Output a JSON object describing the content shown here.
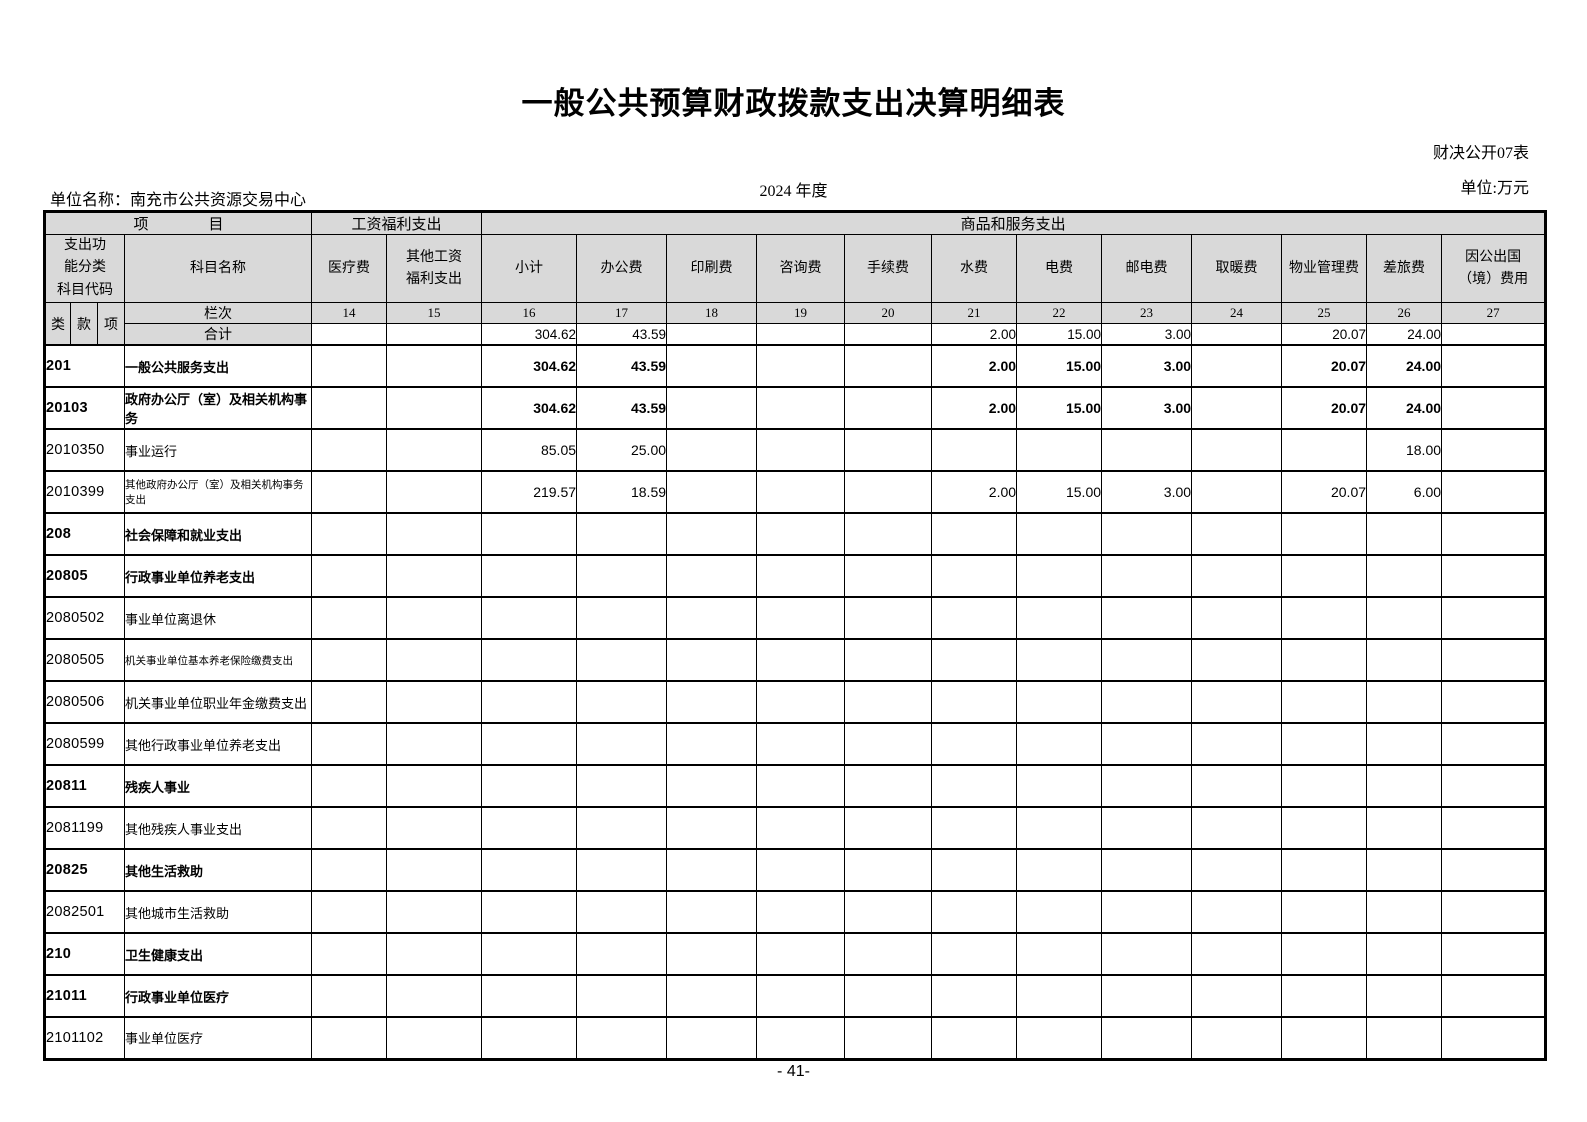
{
  "page": {
    "title": "一般公共预算财政拨款支出决算明细表",
    "form_label": "财决公开07表",
    "unit_name": "单位名称：南充市公共资源交易中心",
    "year": "2024 年度",
    "unit": "单位:万元",
    "page_number": "- 41-"
  },
  "table": {
    "group_headers": {
      "item": "项　　　　目",
      "wage_welfare": "工资福利支出",
      "goods_services": "商品和服务支出"
    },
    "code_header": "支出功\n能分类\n科目代码",
    "subject_header": "科目名称",
    "code_sub_headers": [
      "类",
      "款",
      "项"
    ],
    "lanci_label": "栏次",
    "total_label": "合计",
    "column_headers": [
      "医疗费",
      "其他工资\n福利支出",
      "小计",
      "办公费",
      "印刷费",
      "咨询费",
      "手续费",
      "水费",
      "电费",
      "邮电费",
      "取暖费",
      "物业管理费",
      "差旅费",
      "因公出国\n（境）费用"
    ],
    "column_numbers": [
      "14",
      "15",
      "16",
      "17",
      "18",
      "19",
      "20",
      "21",
      "22",
      "23",
      "24",
      "25",
      "26",
      "27"
    ],
    "total_values": [
      "",
      "",
      "304.62",
      "43.59",
      "",
      "",
      "",
      "2.00",
      "15.00",
      "3.00",
      "",
      "20.07",
      "24.00",
      ""
    ],
    "rows": [
      {
        "code": "201",
        "name": "一般公共服务支出",
        "style": "bold",
        "values": [
          "",
          "",
          "304.62",
          "43.59",
          "",
          "",
          "",
          "2.00",
          "15.00",
          "3.00",
          "",
          "20.07",
          "24.00",
          ""
        ]
      },
      {
        "code": "20103",
        "name": "政府办公厅（室）及相关机构事务",
        "style": "bold",
        "values": [
          "",
          "",
          "304.62",
          "43.59",
          "",
          "",
          "",
          "2.00",
          "15.00",
          "3.00",
          "",
          "20.07",
          "24.00",
          ""
        ]
      },
      {
        "code": "2010350",
        "name": "事业运行",
        "style": "normal",
        "values": [
          "",
          "",
          "85.05",
          "25.00",
          "",
          "",
          "",
          "",
          "",
          "",
          "",
          "",
          "18.00",
          ""
        ]
      },
      {
        "code": "2010399",
        "name": "其他政府办公厅（室）及相关机构事务支出",
        "style": "small",
        "values": [
          "",
          "",
          "219.57",
          "18.59",
          "",
          "",
          "",
          "2.00",
          "15.00",
          "3.00",
          "",
          "20.07",
          "6.00",
          ""
        ]
      },
      {
        "code": "208",
        "name": "社会保障和就业支出",
        "style": "bold",
        "values": [
          "",
          "",
          "",
          "",
          "",
          "",
          "",
          "",
          "",
          "",
          "",
          "",
          "",
          ""
        ]
      },
      {
        "code": "20805",
        "name": "行政事业单位养老支出",
        "style": "bold",
        "values": [
          "",
          "",
          "",
          "",
          "",
          "",
          "",
          "",
          "",
          "",
          "",
          "",
          "",
          ""
        ]
      },
      {
        "code": "2080502",
        "name": "事业单位离退休",
        "style": "normal",
        "values": [
          "",
          "",
          "",
          "",
          "",
          "",
          "",
          "",
          "",
          "",
          "",
          "",
          "",
          ""
        ]
      },
      {
        "code": "2080505",
        "name": "机关事业单位基本养老保险缴费支出",
        "style": "small",
        "values": [
          "",
          "",
          "",
          "",
          "",
          "",
          "",
          "",
          "",
          "",
          "",
          "",
          "",
          ""
        ]
      },
      {
        "code": "2080506",
        "name": "机关事业单位职业年金缴费支出",
        "style": "normal",
        "values": [
          "",
          "",
          "",
          "",
          "",
          "",
          "",
          "",
          "",
          "",
          "",
          "",
          "",
          ""
        ]
      },
      {
        "code": "2080599",
        "name": "其他行政事业单位养老支出",
        "style": "normal",
        "values": [
          "",
          "",
          "",
          "",
          "",
          "",
          "",
          "",
          "",
          "",
          "",
          "",
          "",
          ""
        ]
      },
      {
        "code": "20811",
        "name": "残疾人事业",
        "style": "bold",
        "values": [
          "",
          "",
          "",
          "",
          "",
          "",
          "",
          "",
          "",
          "",
          "",
          "",
          "",
          ""
        ]
      },
      {
        "code": "2081199",
        "name": "其他残疾人事业支出",
        "style": "normal",
        "values": [
          "",
          "",
          "",
          "",
          "",
          "",
          "",
          "",
          "",
          "",
          "",
          "",
          "",
          ""
        ]
      },
      {
        "code": "20825",
        "name": "其他生活救助",
        "style": "bold",
        "values": [
          "",
          "",
          "",
          "",
          "",
          "",
          "",
          "",
          "",
          "",
          "",
          "",
          "",
          ""
        ]
      },
      {
        "code": "2082501",
        "name": "其他城市生活救助",
        "style": "normal",
        "values": [
          "",
          "",
          "",
          "",
          "",
          "",
          "",
          "",
          "",
          "",
          "",
          "",
          "",
          ""
        ]
      },
      {
        "code": "210",
        "name": "卫生健康支出",
        "style": "bold",
        "values": [
          "",
          "",
          "",
          "",
          "",
          "",
          "",
          "",
          "",
          "",
          "",
          "",
          "",
          ""
        ]
      },
      {
        "code": "21011",
        "name": "行政事业单位医疗",
        "style": "bold",
        "values": [
          "",
          "",
          "",
          "",
          "",
          "",
          "",
          "",
          "",
          "",
          "",
          "",
          "",
          ""
        ]
      },
      {
        "code": "2101102",
        "name": "事业单位医疗",
        "style": "normal",
        "values": [
          "",
          "",
          "",
          "",
          "",
          "",
          "",
          "",
          "",
          "",
          "",
          "",
          "",
          ""
        ]
      }
    ]
  }
}
